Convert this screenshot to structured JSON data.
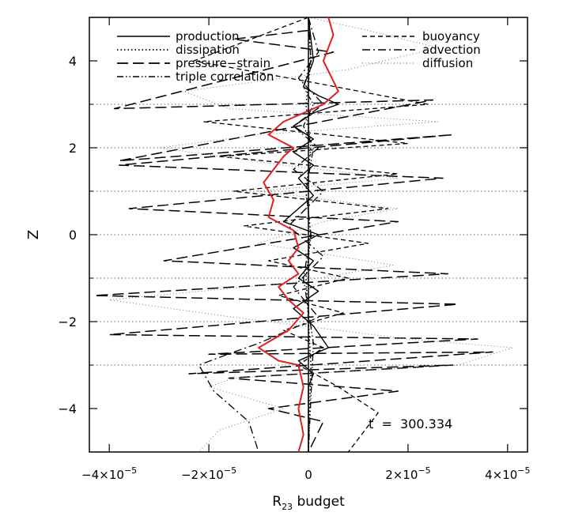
{
  "chart_data": {
    "type": "line",
    "xlabel": "R",
    "xlabel_sub": "23",
    "xlabel_suffix": " budget",
    "ylabel": "Z",
    "xlim": [
      -4.4e-05,
      4.4e-05
    ],
    "ylim": [
      -5,
      5
    ],
    "x_ticks": [
      {
        "value": -4e-05,
        "mantissa": "−4×10",
        "exp": "−5"
      },
      {
        "value": -2e-05,
        "mantissa": "−2×10",
        "exp": "−5"
      },
      {
        "value": 0,
        "mantissa": "0",
        "exp": ""
      },
      {
        "value": 2e-05,
        "mantissa": "2×10",
        "exp": "−5"
      },
      {
        "value": 4e-05,
        "mantissa": "4×10",
        "exp": "−5"
      }
    ],
    "y_ticks": [
      {
        "value": 4,
        "label": "4"
      },
      {
        "value": 2,
        "label": "2"
      },
      {
        "value": 0,
        "label": "0"
      },
      {
        "value": -2,
        "label": "−2"
      },
      {
        "value": -4,
        "label": "−4"
      }
    ],
    "hlines_dotted_y": [
      3,
      2,
      1,
      0,
      -1,
      -2,
      -3
    ],
    "annotation": "t  =  300.334",
    "legend_position": "top",
    "legend": {
      "left": [
        "production",
        "dissipation",
        "pressure−strain",
        "triple correlation"
      ],
      "right": [
        "buoyancy",
        "advection",
        "diffusion"
      ]
    },
    "series": [
      {
        "name": "production",
        "style": "solid",
        "color": "#000000",
        "x": [
          0,
          1e-06,
          -1e-06,
          2e-06,
          6e-06,
          1e-06,
          -3e-06,
          1e-06,
          -3e-06,
          1e-06,
          -2e-06,
          1e-06,
          -5e-06,
          2e-06,
          -3e-06,
          1e-06,
          -2e-06,
          2e-06,
          -3e-06,
          1e-06,
          4e-06,
          -2e-06,
          1e-06,
          0,
          0,
          0
        ],
        "y": [
          5,
          4,
          3.4,
          3.2,
          3.0,
          2.8,
          2.5,
          2.2,
          1.9,
          1.6,
          1.3,
          0.9,
          0.3,
          0.0,
          -0.3,
          -0.6,
          -1.0,
          -1.3,
          -1.7,
          -2.1,
          -2.6,
          -2.9,
          -3.2,
          -3.5,
          -4.2,
          -5
        ]
      },
      {
        "name": "dissipation",
        "style": "dotted",
        "color": "#000000",
        "x": [
          0,
          5e-07,
          -5e-07,
          5e-07,
          -5e-07,
          5e-07,
          -5e-07,
          5e-07,
          0
        ],
        "y": [
          5,
          4,
          3,
          2,
          1,
          0,
          -1,
          -3,
          -5
        ]
      },
      {
        "name": "pressure−strain",
        "style": "longdash",
        "color": "#000000",
        "x": [
          0,
          -1.5e-05,
          5e-06,
          -3.9e-05,
          2.5e-05,
          -3.8e-05,
          2.9e-05,
          -3.8e-05,
          2.7e-05,
          -3.6e-05,
          1.8e-05,
          -2.9e-05,
          2.8e-05,
          -4.3e-05,
          3e-05,
          -4e-05,
          3.4e-05,
          -2e-05,
          3.7e-05,
          -2.4e-05,
          2.9e-05,
          -1.6e-05,
          1.8e-05,
          -8e-06,
          3e-06,
          0
        ],
        "y": [
          4.7,
          4.5,
          4.2,
          2.9,
          3.1,
          1.7,
          2.3,
          1.6,
          1.3,
          0.6,
          0.3,
          -0.6,
          -0.9,
          -1.4,
          -1.6,
          -2.3,
          -2.4,
          -2.75,
          -2.7,
          -3.2,
          -3.0,
          -3.3,
          -3.6,
          -4.0,
          -4.3,
          -5
        ]
      },
      {
        "name": "triple correlation",
        "style": "dashdotdot",
        "color": "#000000",
        "x": [
          0,
          5e-07,
          -1e-06,
          1e-06,
          -1e-06,
          1e-06,
          -5e-07,
          5e-07,
          -1e-06,
          1e-06,
          0
        ],
        "y": [
          5,
          4,
          3.4,
          3.0,
          2.5,
          2.0,
          1.0,
          0.0,
          -1.0,
          -2.5,
          -5
        ]
      },
      {
        "name": "buoyancy",
        "style": "dashed",
        "color": "#000000",
        "x": [
          0,
          -2.3e-05,
          1e-06,
          2.4e-05,
          -2.1e-05,
          2e-05,
          -1.8e-05,
          1.8e-05,
          -1.5e-05,
          1.6e-05,
          -1.3e-05,
          1.2e-05,
          -8e-06,
          8e-06,
          -6e-06,
          7e-06,
          -5e-06,
          3e-06,
          -2e-06,
          6e-06,
          1.4e-05,
          8e-06
        ],
        "y": [
          5,
          4.0,
          3.5,
          3.0,
          2.6,
          2.1,
          1.8,
          1.4,
          1.0,
          0.6,
          0.2,
          -0.2,
          -0.6,
          -1.0,
          -1.4,
          -1.8,
          -2.2,
          -2.6,
          -3.0,
          -3.5,
          -4.1,
          -5
        ]
      },
      {
        "name": "advection",
        "style": "dashdot",
        "color": "#000000",
        "x": [
          0,
          2e-06,
          -2e-06,
          3e-06,
          -3e-06,
          2e-06,
          -3e-06,
          3e-06,
          -4e-06,
          3e-06,
          -3e-06,
          2e-06,
          -1e-05,
          -1.5e-05,
          -2.2e-05,
          -1.9e-05,
          -1.2e-05,
          -1e-05
        ],
        "y": [
          5,
          4.2,
          3.6,
          3.0,
          2.5,
          2.0,
          1.5,
          1.0,
          0.2,
          -0.5,
          -1.2,
          -1.9,
          -2.5,
          -2.7,
          -3.0,
          -3.6,
          -4.3,
          -5
        ]
      },
      {
        "name": "diffusion",
        "style": "thindot",
        "color": "#777777",
        "x": [
          0,
          1.2e-05,
          2.6e-05,
          8e-06,
          -2.5e-05,
          -1.6e-05,
          2.6e-05,
          -1e-05,
          -3e-05,
          -5e-06,
          1.8e-05,
          -1e-05,
          1.8e-05,
          3e-06,
          -1e-05,
          1.7e-05,
          -3e-06,
          -4e-05,
          -1.5e-05,
          2e-05,
          4.1e-05,
          3e-05,
          -1.5e-05,
          -2e-05,
          -5e-06,
          -1.8e-05,
          -2.2e-05
        ],
        "y": [
          5,
          4.7,
          4.3,
          3.8,
          3.3,
          2.9,
          2.6,
          2.3,
          2.0,
          1.6,
          1.3,
          1.0,
          0.6,
          0.3,
          -0.2,
          -0.7,
          -1.1,
          -1.5,
          -1.9,
          -2.4,
          -2.6,
          -3.0,
          -3.3,
          -3.5,
          -4.0,
          -4.5,
          -5
        ]
      },
      {
        "name": "",
        "style": "solid",
        "color": "#dd2222",
        "x": [
          4e-06,
          5e-06,
          3e-06,
          6e-06,
          3e-06,
          -5e-06,
          -8e-06,
          -3e-06,
          -5e-06,
          -9e-06,
          -7e-06,
          -8e-06,
          -3e-06,
          -2e-06,
          -4e-06,
          -2e-06,
          -6e-06,
          -4e-06,
          -1e-06,
          -4e-06,
          -1e-05,
          -6e-06,
          -2e-06,
          -1e-06,
          -2e-06,
          -1e-06,
          -2e-06
        ],
        "y": [
          5,
          4.6,
          4.0,
          3.3,
          3.0,
          2.6,
          2.3,
          2.0,
          1.8,
          1.2,
          0.8,
          0.4,
          0.1,
          -0.3,
          -0.6,
          -0.9,
          -1.2,
          -1.5,
          -1.8,
          -2.2,
          -2.6,
          -2.9,
          -3.0,
          -3.5,
          -4.0,
          -4.6,
          -5
        ]
      }
    ]
  }
}
